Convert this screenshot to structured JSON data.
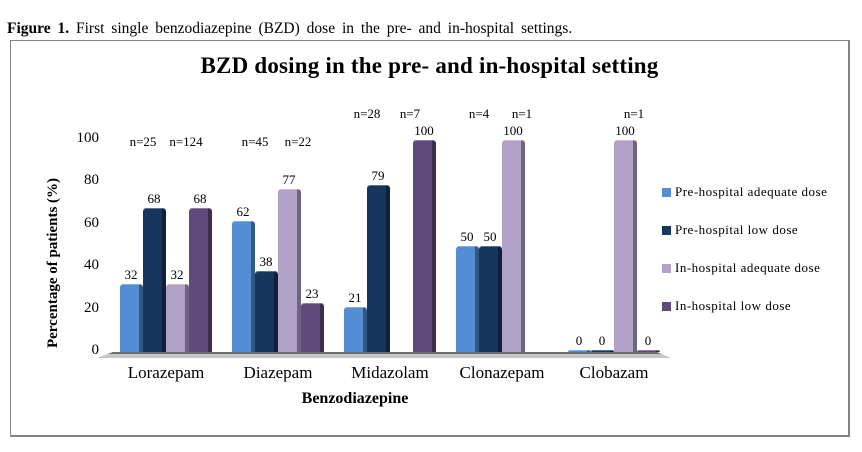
{
  "figure_caption": {
    "prefix": "Figure 1.",
    "text": "First single benzodiazepine (BZD) dose in the pre- and in-hospital settings."
  },
  "chart_data": {
    "type": "bar",
    "variant": "3d-clustered-column",
    "title": "BZD dosing in the pre- and in-hospital setting",
    "xlabel": "Benzodiazepine",
    "ylabel": "Percentage of patients (%)",
    "ylim": [
      0,
      100
    ],
    "yticks": [
      0,
      20,
      40,
      60,
      80,
      100
    ],
    "gridlines": false,
    "legend_position": "right",
    "categories": [
      "Lorazepam",
      "Diazepam",
      "Midazolam",
      "Clonazepam",
      "Clobazam"
    ],
    "series": [
      {
        "name": "Pre-hospital adequate dose",
        "color": "#548dd4",
        "values": [
          32,
          62,
          21,
          50,
          0
        ],
        "labels": [
          "32",
          "62",
          "21",
          "50",
          "0"
        ]
      },
      {
        "name": "Pre-hospital low dose",
        "color": "#17365d",
        "values": [
          68,
          38,
          79,
          50,
          0
        ],
        "labels": [
          "68",
          "38",
          "79",
          "50",
          "0"
        ]
      },
      {
        "name": "In-hospital adequate dose",
        "color": "#b2a2c7",
        "values": [
          32,
          77,
          0,
          100,
          100
        ],
        "labels": [
          "32",
          "77",
          "",
          "100",
          "100"
        ]
      },
      {
        "name": "In-hospital low dose",
        "color": "#604a7b",
        "values": [
          68,
          23,
          100,
          0,
          0
        ],
        "labels": [
          "68",
          "23",
          "100",
          "",
          "0"
        ]
      }
    ],
    "sample_size_labels": {
      "pre_hospital": [
        "n=25",
        "n=45",
        "n=28",
        "n=4",
        ""
      ],
      "in_hospital": [
        "n=124",
        "n=22",
        "n=7",
        "n=1",
        "n=1"
      ]
    },
    "colors": {
      "floor": "#c6c6c6",
      "border": "#828282",
      "text": "#000000"
    }
  }
}
